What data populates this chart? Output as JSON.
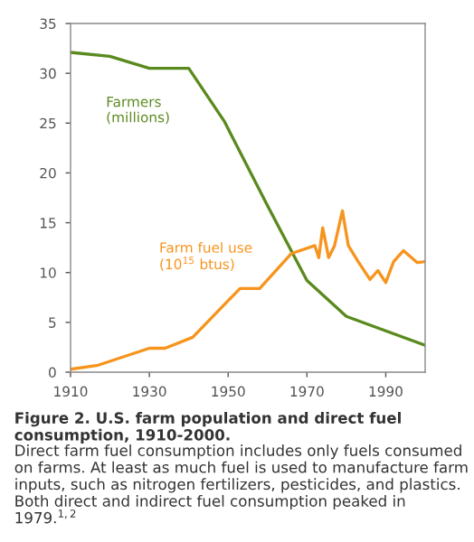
{
  "chart_data": {
    "type": "line",
    "title": "Figure 2. U.S. farm population and direct fuel consumption, 1910-2000.",
    "annotations": [
      "Direct farm fuel consumption includes only fuels consumed on farms. At least as much fuel is used to manufacture farm inputs, such as nitrogen fertilizers, pesticides, and plastics. Both direct and indirect fuel consumption peaked in 1979.$^{1,2}$"
    ],
    "series": [
      {
        "name": "Farmers\n(millions)",
        "color": "#5a8a1e",
        "x": [
          1910,
          1920,
          1930,
          1940,
          1949,
          1960,
          1970,
          1980,
          2000
        ],
        "values": [
          32.1,
          31.7,
          30.5,
          30.5,
          25.2,
          16.7,
          9.2,
          5.6,
          2.7
        ]
      },
      {
        "name": "Farm fuel use\n(10$^{15}$ btus)",
        "color": "#f7941d",
        "x": [
          1910,
          1917,
          1930,
          1934,
          1941,
          1953,
          1958,
          1966,
          1972,
          1973,
          1974,
          1975.5,
          1977,
          1979,
          1980.5,
          1983,
          1986,
          1988,
          1990,
          1992,
          1994.5,
          1998,
          2000
        ],
        "values": [
          0.3,
          0.7,
          2.4,
          2.4,
          3.5,
          8.4,
          8.4,
          11.9,
          12.7,
          11.5,
          14.5,
          11.5,
          12.7,
          16.2,
          12.7,
          11.1,
          9.3,
          10.2,
          9.0,
          11.1,
          12.2,
          11.0,
          11.1
        ]
      }
    ],
    "xlim": [
      1910,
      2000
    ],
    "xticks": [
      1910,
      1930,
      1950,
      1970,
      1990
    ],
    "ylim": [
      0,
      35
    ],
    "yticks": [
      0,
      5,
      10,
      15,
      20,
      25,
      30,
      35
    ],
    "grid": false,
    "legend": false
  }
}
